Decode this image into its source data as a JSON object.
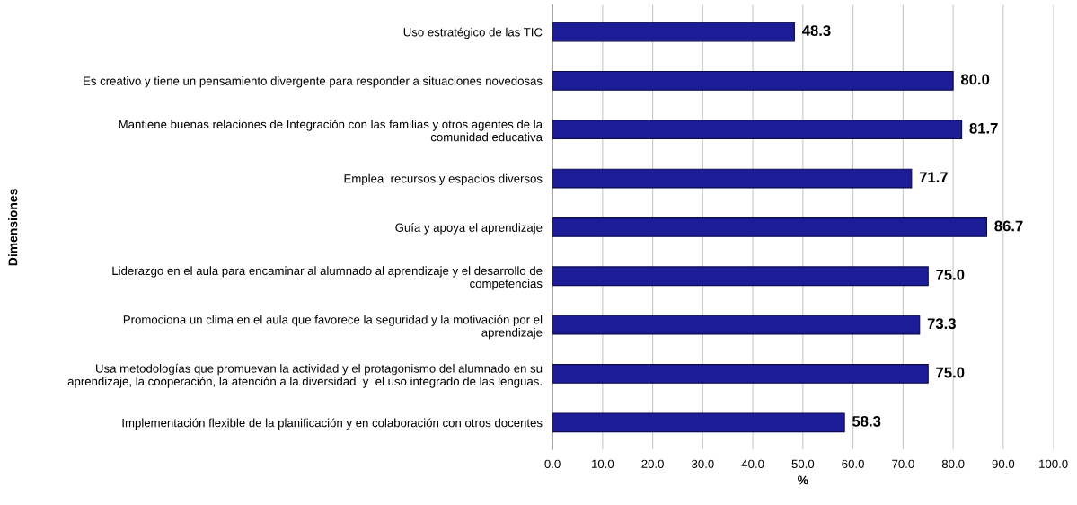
{
  "chart_data": {
    "type": "bar",
    "orientation": "horizontal",
    "ylabel": "Dimensiones",
    "xlabel": "%",
    "categories": [
      "Uso estratégico de las TIC",
      "Es creativo y tiene un pensamiento divergente para responder a situaciones novedosas",
      "Mantiene buenas relaciones de Integración con las familias y otros agentes de la\ncomunidad educativa",
      "Emplea  recursos y espacios diversos",
      "Guía y apoya el aprendizaje",
      "Liderazgo en el aula para encaminar al alumnado al aprendizaje y el desarrollo de\ncompetencias",
      "Promociona un clima en el aula que favorece la seguridad y la motivación por el\naprendizaje",
      "Usa metodologías que promuevan la actividad y el protagonismo del alumnado en su\naprendizaje, la cooperación, la atención a la diversidad  y  el uso integrado de las lenguas.",
      "Implementación flexible de la planificación y en colaboración con otros docentes"
    ],
    "values": [
      48.3,
      80.0,
      81.7,
      71.7,
      86.7,
      75.0,
      73.3,
      75.0,
      58.3
    ],
    "color": "#1c1c96",
    "value_labels": [
      "48.3",
      "80.0",
      "81.7",
      "71.7",
      "86.7",
      "75.0",
      "73.3",
      "75.0",
      "58.3"
    ],
    "grid": "x",
    "xlim": [
      0,
      100
    ],
    "xticks": [
      {
        "value": 0,
        "label": "0.0"
      },
      {
        "value": 10,
        "label": "10.0"
      },
      {
        "value": 20,
        "label": "20.0"
      },
      {
        "value": 30,
        "label": "30.0"
      },
      {
        "value": 40,
        "label": "40.0"
      },
      {
        "value": 50,
        "label": "50.0"
      },
      {
        "value": 60,
        "label": "60.0"
      },
      {
        "value": 70,
        "label": "70.0"
      },
      {
        "value": 80,
        "label": "80.0"
      },
      {
        "value": 90,
        "label": "90.0"
      },
      {
        "value": 100,
        "label": "100.0"
      }
    ]
  }
}
